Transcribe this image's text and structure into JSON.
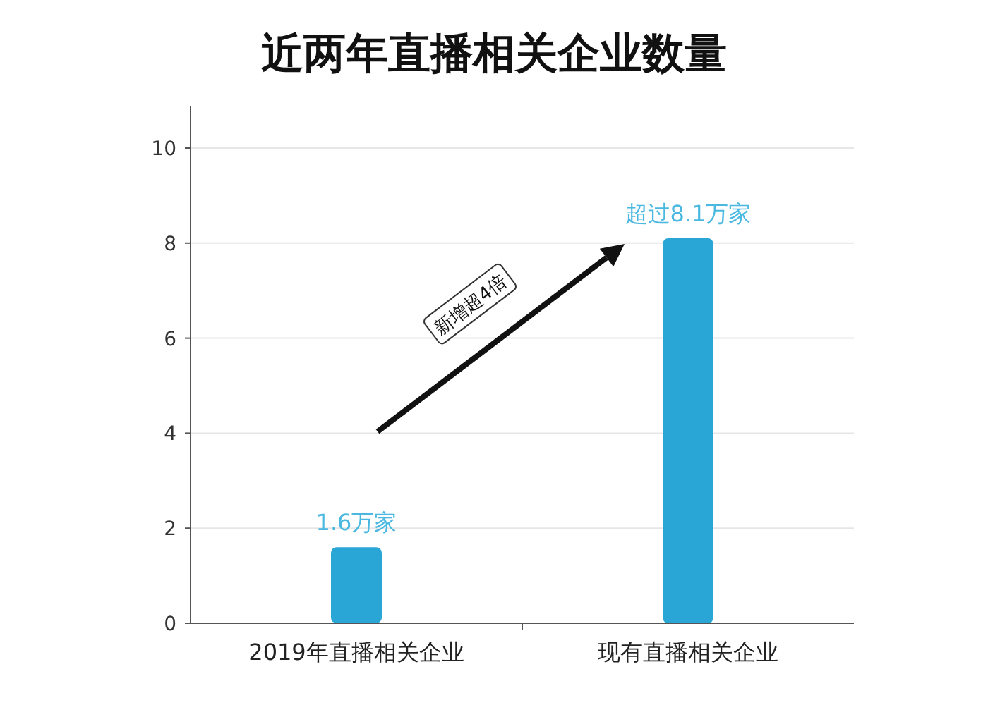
{
  "chart_data": {
    "type": "bar",
    "title": "近两年直播相关企业数量",
    "categories": [
      "2019年直播相关企业",
      "现有直播相关企业"
    ],
    "values": [
      1.6,
      8.1
    ],
    "value_labels": [
      "1.6万家",
      "超过8.1万家"
    ],
    "color": "#2aa6d6",
    "ylim": [
      0,
      10
    ],
    "yticks": [
      0,
      2,
      4,
      6,
      8,
      10
    ],
    "grid": "y",
    "annotations": [
      "新增超4倍"
    ]
  }
}
